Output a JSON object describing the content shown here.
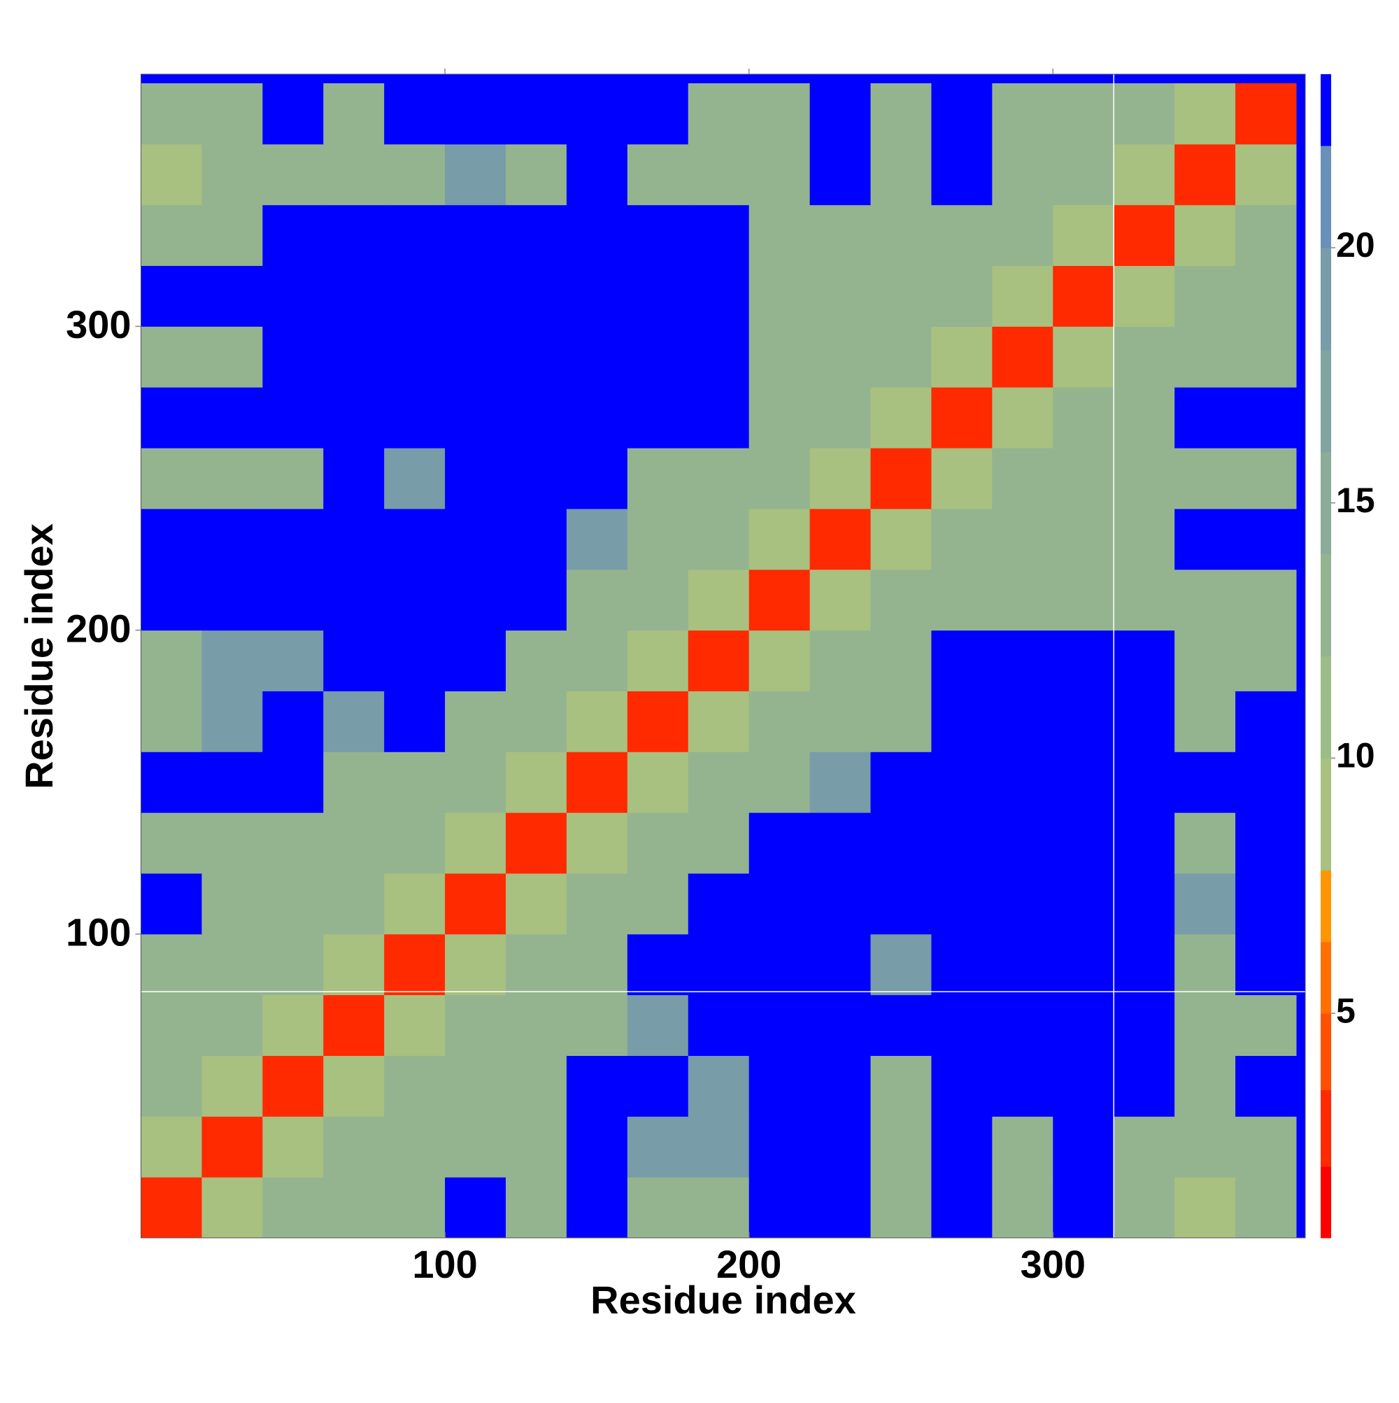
{
  "chart_data": {
    "type": "heatmap",
    "x_label": "Residue index",
    "y_label": "Residue index",
    "xlim": [
      0,
      383
    ],
    "ylim": [
      0,
      383
    ],
    "xticks": [
      100,
      200,
      300
    ],
    "yticks": [
      100,
      200,
      300
    ],
    "bin_edges": [
      0,
      20,
      40,
      60,
      80,
      100,
      120,
      140,
      160,
      180,
      200,
      220,
      240,
      260,
      280,
      300,
      320,
      340,
      360,
      380
    ],
    "z": [
      [
        3,
        8,
        13,
        13,
        13,
        24,
        13,
        24,
        13,
        13,
        24,
        24,
        13,
        24,
        13,
        24,
        13,
        8,
        13
      ],
      [
        8,
        3,
        8,
        13,
        13,
        13,
        13,
        24,
        19,
        19,
        24,
        24,
        13,
        24,
        13,
        24,
        13,
        13,
        13
      ],
      [
        13,
        8,
        3,
        8,
        13,
        13,
        13,
        24,
        24,
        19,
        24,
        24,
        13,
        24,
        24,
        24,
        24,
        13,
        24
      ],
      [
        13,
        13,
        8,
        3,
        8,
        13,
        13,
        13,
        19,
        24,
        24,
        24,
        24,
        24,
        24,
        24,
        24,
        13,
        13
      ],
      [
        13,
        13,
        13,
        8,
        3,
        8,
        13,
        13,
        24,
        24,
        24,
        24,
        19,
        24,
        24,
        24,
        24,
        13,
        24
      ],
      [
        24,
        13,
        13,
        13,
        8,
        3,
        8,
        13,
        13,
        24,
        24,
        24,
        24,
        24,
        24,
        24,
        24,
        19,
        24
      ],
      [
        13,
        13,
        13,
        13,
        13,
        8,
        3,
        8,
        13,
        13,
        24,
        24,
        24,
        24,
        24,
        24,
        24,
        13,
        24
      ],
      [
        24,
        24,
        24,
        13,
        13,
        13,
        8,
        3,
        8,
        13,
        13,
        19,
        24,
        24,
        24,
        24,
        24,
        24,
        24
      ],
      [
        13,
        19,
        24,
        19,
        24,
        13,
        13,
        8,
        3,
        8,
        13,
        13,
        13,
        24,
        24,
        24,
        24,
        13,
        24
      ],
      [
        13,
        19,
        19,
        24,
        24,
        24,
        13,
        13,
        8,
        3,
        8,
        13,
        13,
        24,
        24,
        24,
        24,
        13,
        13
      ],
      [
        24,
        24,
        24,
        24,
        24,
        24,
        24,
        13,
        13,
        8,
        3,
        8,
        13,
        13,
        13,
        13,
        13,
        13,
        13
      ],
      [
        24,
        24,
        24,
        24,
        24,
        24,
        24,
        19,
        13,
        13,
        8,
        3,
        8,
        13,
        13,
        13,
        13,
        24,
        24
      ],
      [
        13,
        13,
        13,
        24,
        19,
        24,
        24,
        24,
        13,
        13,
        13,
        8,
        3,
        8,
        13,
        13,
        13,
        13,
        13
      ],
      [
        24,
        24,
        24,
        24,
        24,
        24,
        24,
        24,
        24,
        24,
        13,
        13,
        8,
        3,
        8,
        13,
        13,
        24,
        24
      ],
      [
        13,
        13,
        24,
        24,
        24,
        24,
        24,
        24,
        24,
        24,
        13,
        13,
        13,
        8,
        3,
        8,
        13,
        13,
        13
      ],
      [
        24,
        24,
        24,
        24,
        24,
        24,
        24,
        24,
        24,
        24,
        13,
        13,
        13,
        13,
        8,
        3,
        8,
        13,
        13
      ],
      [
        13,
        13,
        24,
        24,
        24,
        24,
        24,
        24,
        24,
        24,
        13,
        13,
        13,
        13,
        13,
        8,
        3,
        8,
        13
      ],
      [
        8,
        13,
        13,
        13,
        13,
        19,
        13,
        24,
        13,
        13,
        13,
        24,
        13,
        24,
        13,
        13,
        8,
        3,
        8
      ],
      [
        13,
        13,
        24,
        13,
        24,
        24,
        24,
        24,
        24,
        13,
        13,
        24,
        13,
        24,
        13,
        13,
        13,
        8,
        3
      ]
    ],
    "background_color": "#0000ff",
    "colorbar": {
      "lim": [
        0.6,
        23.4
      ],
      "ticks": [
        5,
        10,
        15,
        20
      ],
      "boundaries": [
        0.6,
        2,
        3.5,
        5,
        6.4,
        7.8,
        10,
        12,
        14,
        16,
        18,
        20,
        22,
        23.4
      ],
      "colors": [
        "#ff0000",
        "#ff2a00",
        "#ff5000",
        "#ff7000",
        "#ff9500",
        "#a8c080",
        "#9cbc88",
        "#94b490",
        "#8aac98",
        "#80a4a0",
        "#789ca8",
        "#6890b8",
        "#0000ff"
      ]
    },
    "crosshair": {
      "x": 320,
      "y": 81
    }
  }
}
